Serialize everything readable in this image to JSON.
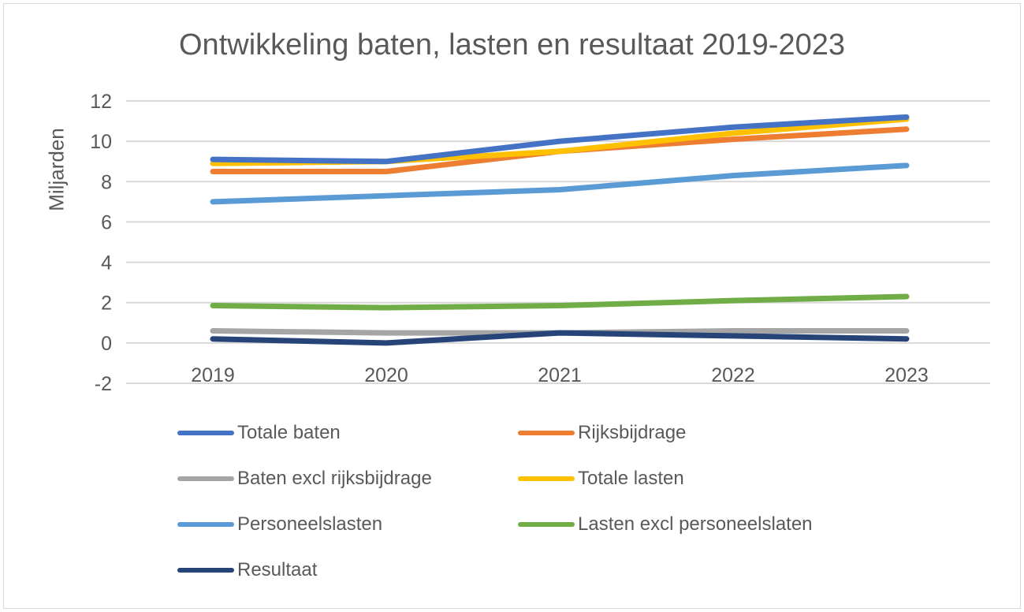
{
  "chart_data": {
    "type": "line",
    "title": "Ontwikkeling baten, lasten en resultaat 2019-2023",
    "xlabel": "",
    "ylabel": "Miljarden",
    "x": [
      "2019",
      "2020",
      "2021",
      "2022",
      "2023"
    ],
    "ylim": [
      -2,
      12
    ],
    "yticks": [
      "12",
      "10",
      "8",
      "6",
      "4",
      "2",
      "0",
      "-2"
    ],
    "grid": true,
    "legend_position": "bottom",
    "series": [
      {
        "name": "Totale baten",
        "color": "#4472c4",
        "values": [
          9.1,
          9.0,
          10.0,
          10.7,
          11.2
        ]
      },
      {
        "name": "Rijksbijdrage",
        "color": "#ed7d31",
        "values": [
          8.5,
          8.5,
          9.5,
          10.1,
          10.6
        ]
      },
      {
        "name": "Baten excl rijksbijdrage",
        "color": "#a5a5a5",
        "values": [
          0.6,
          0.5,
          0.5,
          0.6,
          0.6
        ]
      },
      {
        "name": "Totale lasten",
        "color": "#ffc000",
        "values": [
          8.9,
          9.0,
          9.5,
          10.4,
          11.1
        ]
      },
      {
        "name": "Personeelslasten",
        "color": "#5b9bd5",
        "values": [
          7.0,
          7.3,
          7.6,
          8.3,
          8.8
        ]
      },
      {
        "name": "Lasten excl personeelslaten",
        "color": "#70ad47",
        "values": [
          1.85,
          1.75,
          1.85,
          2.1,
          2.3
        ]
      },
      {
        "name": "Resultaat",
        "color": "#264478",
        "values": [
          0.2,
          0.0,
          0.5,
          0.35,
          0.2
        ]
      }
    ]
  }
}
